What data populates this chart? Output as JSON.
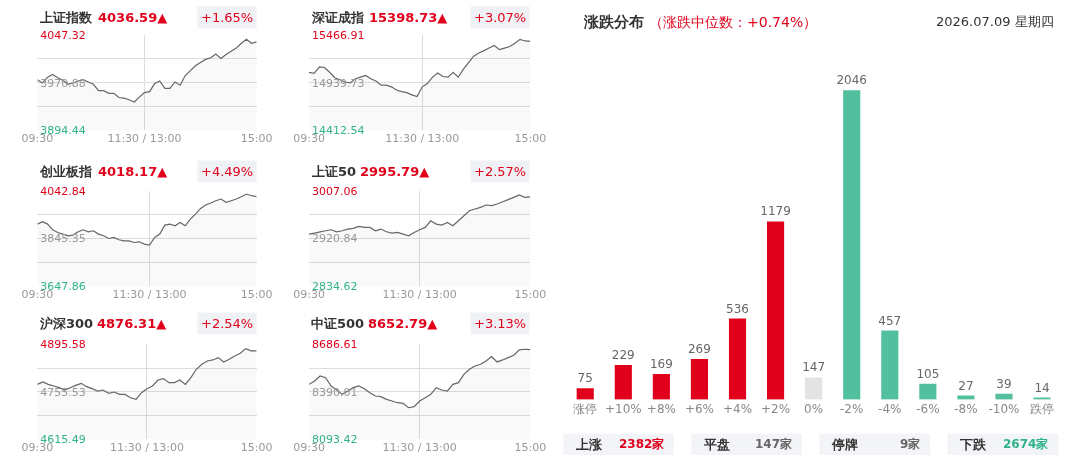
{
  "chart_data": [
    {
      "type": "area",
      "title": "上证指数",
      "subtitle": "4036.59▲",
      "annotations": [
        "+1.65%"
      ],
      "grid": true,
      "ylim": [
        3894.44,
        4047.32
      ],
      "yticks": [
        3894.44,
        {
          "value": 3932.66,
          "label": null
        },
        3970.88,
        {
          "value": 4009.1,
          "label": null
        },
        4047.32
      ],
      "categories": [
        "09:30",
        null,
        null,
        null,
        null,
        null,
        null,
        null,
        null,
        null,
        null,
        null,
        null,
        null,
        null,
        null,
        null,
        null,
        null,
        null,
        null,
        "11:30 / 13:00",
        null,
        null,
        null,
        null,
        null,
        null,
        null,
        null,
        null,
        null,
        null,
        null,
        null,
        null,
        null,
        null,
        null,
        null,
        null,
        null,
        null,
        "15:00"
      ],
      "series": [
        {
          "color": "#666666",
          "values": [
            3975.8,
            3970.6,
            3979.9,
            3984.1,
            3978.9,
            3974.8,
            3968.5,
            3970.6,
            3973.7,
            3975.8,
            3972.2,
            3968.5,
            3958.2,
            3958.2,
            3954.0,
            3954.0,
            3947.3,
            3946.3,
            3943.7,
            3940.0,
            3947.8,
            3955.1,
            3956.6,
            3969.6,
            3973.7,
            3961.8,
            3961.8,
            3972.2,
            3967.0,
            3982.5,
            3990.3,
            3998.1,
            4003.3,
            4008.4,
            4011.0,
            4017.2,
            4010.0,
            4016.2,
            4021.4,
            4026.6,
            4034.3,
            4040.6,
            4034.3,
            4036.59
          ]
        }
      ]
    },
    {
      "type": "area",
      "title": "深证成指",
      "subtitle": "15398.73▲",
      "annotations": [
        "+3.07%"
      ],
      "grid": true,
      "ylim": [
        14412.54,
        15466.91
      ],
      "yticks": [
        14412.54,
        {
          "value": 14676.13,
          "label": null
        },
        14939.73,
        {
          "value": 15203.32,
          "label": null
        },
        15466.91
      ],
      "categories": [
        "09:30",
        null,
        null,
        null,
        null,
        null,
        null,
        null,
        null,
        null,
        null,
        null,
        null,
        null,
        null,
        null,
        null,
        null,
        null,
        null,
        null,
        null,
        "11:30 / 13:00",
        null,
        null,
        null,
        null,
        null,
        null,
        null,
        null,
        null,
        null,
        null,
        null,
        null,
        null,
        null,
        null,
        null,
        null,
        null,
        null,
        "15:00"
      ],
      "series": [
        {
          "color": "#666666",
          "values": [
            15055.9,
            15045.2,
            15116.6,
            15109.5,
            15055.9,
            14995.1,
            14973.7,
            14948.7,
            14937.9,
            14984.4,
            15002.3,
            15020.1,
            14984.4,
            14959.4,
            14912.9,
            14912.9,
            14895.1,
            14859.3,
            14841.4,
            14830.7,
            14805.7,
            14787.8,
            14895.1,
            14930.8,
            15002.3,
            15048.7,
            15009.4,
            15002.3,
            15055.9,
            15002.3,
            15091.6,
            15163.1,
            15234.6,
            15270.3,
            15295.3,
            15323.9,
            15352.5,
            15306.1,
            15323.9,
            15341.8,
            15377.5,
            15420.4,
            15402.6,
            15398.73
          ]
        }
      ]
    },
    {
      "type": "area",
      "title": "创业板指",
      "subtitle": "4018.17▲",
      "annotations": [
        "+4.49%"
      ],
      "grid": true,
      "ylim": [
        3647.86,
        4042.84
      ],
      "yticks": [
        3647.86,
        {
          "value": 3746.6,
          "label": null
        },
        3845.35,
        {
          "value": 3944.1,
          "label": null
        },
        4042.84
      ],
      "categories": [
        "09:30",
        null,
        null,
        null,
        null,
        null,
        null,
        null,
        null,
        null,
        null,
        null,
        null,
        null,
        null,
        null,
        null,
        null,
        null,
        null,
        null,
        null,
        "11:30 / 13:00",
        null,
        null,
        null,
        null,
        null,
        null,
        null,
        null,
        null,
        null,
        null,
        null,
        null,
        null,
        null,
        null,
        null,
        null,
        null,
        null,
        "15:00"
      ],
      "series": [
        {
          "color": "#666666",
          "values": [
            3904.2,
            3913.9,
            3904.2,
            3880.6,
            3869.5,
            3862.6,
            3855.7,
            3858.5,
            3872.3,
            3880.6,
            3872.3,
            3876.5,
            3862.6,
            3855.7,
            3844.6,
            3848.8,
            3839.1,
            3834.9,
            3834.9,
            3828.0,
            3830.7,
            3821.0,
            3816.9,
            3848.8,
            3862.6,
            3900.0,
            3904.2,
            3897.3,
            3911.1,
            3897.3,
            3925.0,
            3945.8,
            3969.3,
            3983.2,
            3991.5,
            4001.2,
            4008.1,
            3994.3,
            4001.2,
            4008.1,
            4017.9,
            4028.9,
            4022.0,
            4018.17
          ]
        }
      ]
    },
    {
      "type": "area",
      "title": "上证50",
      "subtitle": "2995.79▲",
      "annotations": [
        "+2.57%"
      ],
      "grid": true,
      "ylim": [
        2834.62,
        3007.06
      ],
      "yticks": [
        2834.62,
        {
          "value": 2877.73,
          "label": null
        },
        2920.84,
        {
          "value": 2963.95,
          "label": null
        },
        3007.06
      ],
      "categories": [
        "09:30",
        null,
        null,
        null,
        null,
        null,
        null,
        null,
        null,
        null,
        null,
        null,
        null,
        null,
        null,
        null,
        null,
        null,
        null,
        null,
        "11:30 / 13:00",
        null,
        null,
        null,
        null,
        null,
        null,
        null,
        null,
        null,
        null,
        null,
        null,
        null,
        null,
        null,
        null,
        null,
        null,
        null,
        "15:00"
      ],
      "series": [
        {
          "color": "#666666",
          "values": [
            2928.4,
            2930.2,
            2932.6,
            2934.5,
            2936.3,
            2932.6,
            2934.5,
            2937.5,
            2938.7,
            2942.4,
            2940.5,
            2940.5,
            2934.5,
            2937.5,
            2932.6,
            2930.2,
            2931.4,
            2928.4,
            2925.4,
            2931.4,
            2936.3,
            2940.5,
            2952.6,
            2946.6,
            2944.8,
            2949.6,
            2943.5,
            2952.6,
            2961.7,
            2970.8,
            2973.8,
            2976.8,
            2981.1,
            2979.9,
            2982.9,
            2987.1,
            2990.8,
            2995.0,
            2999.2,
            2995.0,
            2995.79
          ]
        }
      ]
    },
    {
      "type": "area",
      "title": "沪深300",
      "subtitle": "4876.31▲",
      "annotations": [
        "+2.54%"
      ],
      "grid": true,
      "ylim": [
        4615.49,
        4895.58
      ],
      "yticks": [
        4615.49,
        {
          "value": 4685.51,
          "label": null
        },
        4755.53,
        {
          "value": 4825.56,
          "label": null
        },
        4895.58
      ],
      "categories": [
        "09:30",
        null,
        null,
        null,
        null,
        null,
        null,
        null,
        null,
        null,
        null,
        null,
        null,
        null,
        null,
        null,
        null,
        null,
        null,
        null,
        "11:30 / 13:00",
        null,
        null,
        null,
        null,
        null,
        null,
        null,
        null,
        null,
        null,
        null,
        null,
        null,
        null,
        null,
        null,
        null,
        null,
        null,
        "15:00"
      ],
      "series": [
        {
          "color": "#666666",
          "values": [
            4777.6,
            4784.5,
            4777.6,
            4772.7,
            4767.8,
            4760.9,
            4767.8,
            4774.7,
            4780.6,
            4770.8,
            4764.9,
            4758.0,
            4760.9,
            4751.1,
            4755.0,
            4748.1,
            4748.1,
            4738.3,
            4733.4,
            4753.1,
            4764.9,
            4772.7,
            4790.4,
            4794.4,
            4782.6,
            4782.6,
            4790.4,
            4777.6,
            4797.3,
            4821.9,
            4836.6,
            4846.4,
            4849.4,
            4856.3,
            4843.5,
            4851.4,
            4861.2,
            4869.1,
            4882.8,
            4875.9,
            4876.31
          ]
        }
      ]
    },
    {
      "type": "area",
      "title": "中证500",
      "subtitle": "8652.79▲",
      "annotations": [
        "+3.13%"
      ],
      "grid": true,
      "ylim": [
        8093.42,
        8686.61
      ],
      "yticks": [
        8093.42,
        {
          "value": 8241.72,
          "label": null
        },
        8390.01,
        {
          "value": 8538.31,
          "label": null
        },
        8686.61
      ],
      "categories": [
        "09:30",
        null,
        null,
        null,
        null,
        null,
        null,
        null,
        null,
        null,
        null,
        null,
        null,
        null,
        null,
        null,
        null,
        null,
        null,
        null,
        "11:30 / 13:00",
        null,
        null,
        null,
        null,
        null,
        null,
        null,
        null,
        null,
        null,
        null,
        null,
        null,
        null,
        null,
        null,
        null,
        null,
        null,
        "15:00"
      ],
      "series": [
        {
          "color": "#666666",
          "values": [
            8436.9,
            8457.7,
            8488.9,
            8478.5,
            8426.5,
            8401.5,
            8374.4,
            8395.3,
            8416.1,
            8426.5,
            8409.8,
            8384.9,
            8364.0,
            8359.9,
            8343.2,
            8332.8,
            8322.4,
            8318.3,
            8291.2,
            8297.5,
            8332.8,
            8353.6,
            8374.4,
            8416.1,
            8401.5,
            8395.3,
            8436.9,
            8447.3,
            8499.3,
            8530.5,
            8551.3,
            8561.7,
            8582.6,
            8609.6,
            8576.3,
            8588.8,
            8603.4,
            8617.9,
            8651.2,
            8655.4,
            8652.79
          ]
        }
      ]
    },
    {
      "type": "bar",
      "title": "涨跌分布",
      "subtitle": "（涨跌中位数：+0.74%）",
      "annotations": [
        "2026.07.09 星期四",
        "上涨",
        "2382家",
        "平盘",
        "147家",
        "停牌",
        "9家",
        "下跌",
        "2674家"
      ],
      "data_labels": true,
      "tick_labels": "x",
      "categories": [
        "涨停",
        "+10%",
        "+8%",
        "+6%",
        "+4%",
        "+2%",
        "0%",
        "-2%",
        "-4%",
        "-6%",
        "-8%",
        "-10%",
        "跌停"
      ],
      "values": [
        75,
        229,
        169,
        269,
        536,
        1179,
        147,
        2046,
        457,
        105,
        27,
        39,
        14
      ],
      "colors": [
        "#e0001b",
        "#e0001b",
        "#e0001b",
        "#e0001b",
        "#e0001b",
        "#e0001b",
        "#e3e3e3",
        "#52c09e",
        "#52c09e",
        "#52c09e",
        "#52c09e",
        "#52c09e",
        "#52c09e"
      ]
    }
  ]
}
